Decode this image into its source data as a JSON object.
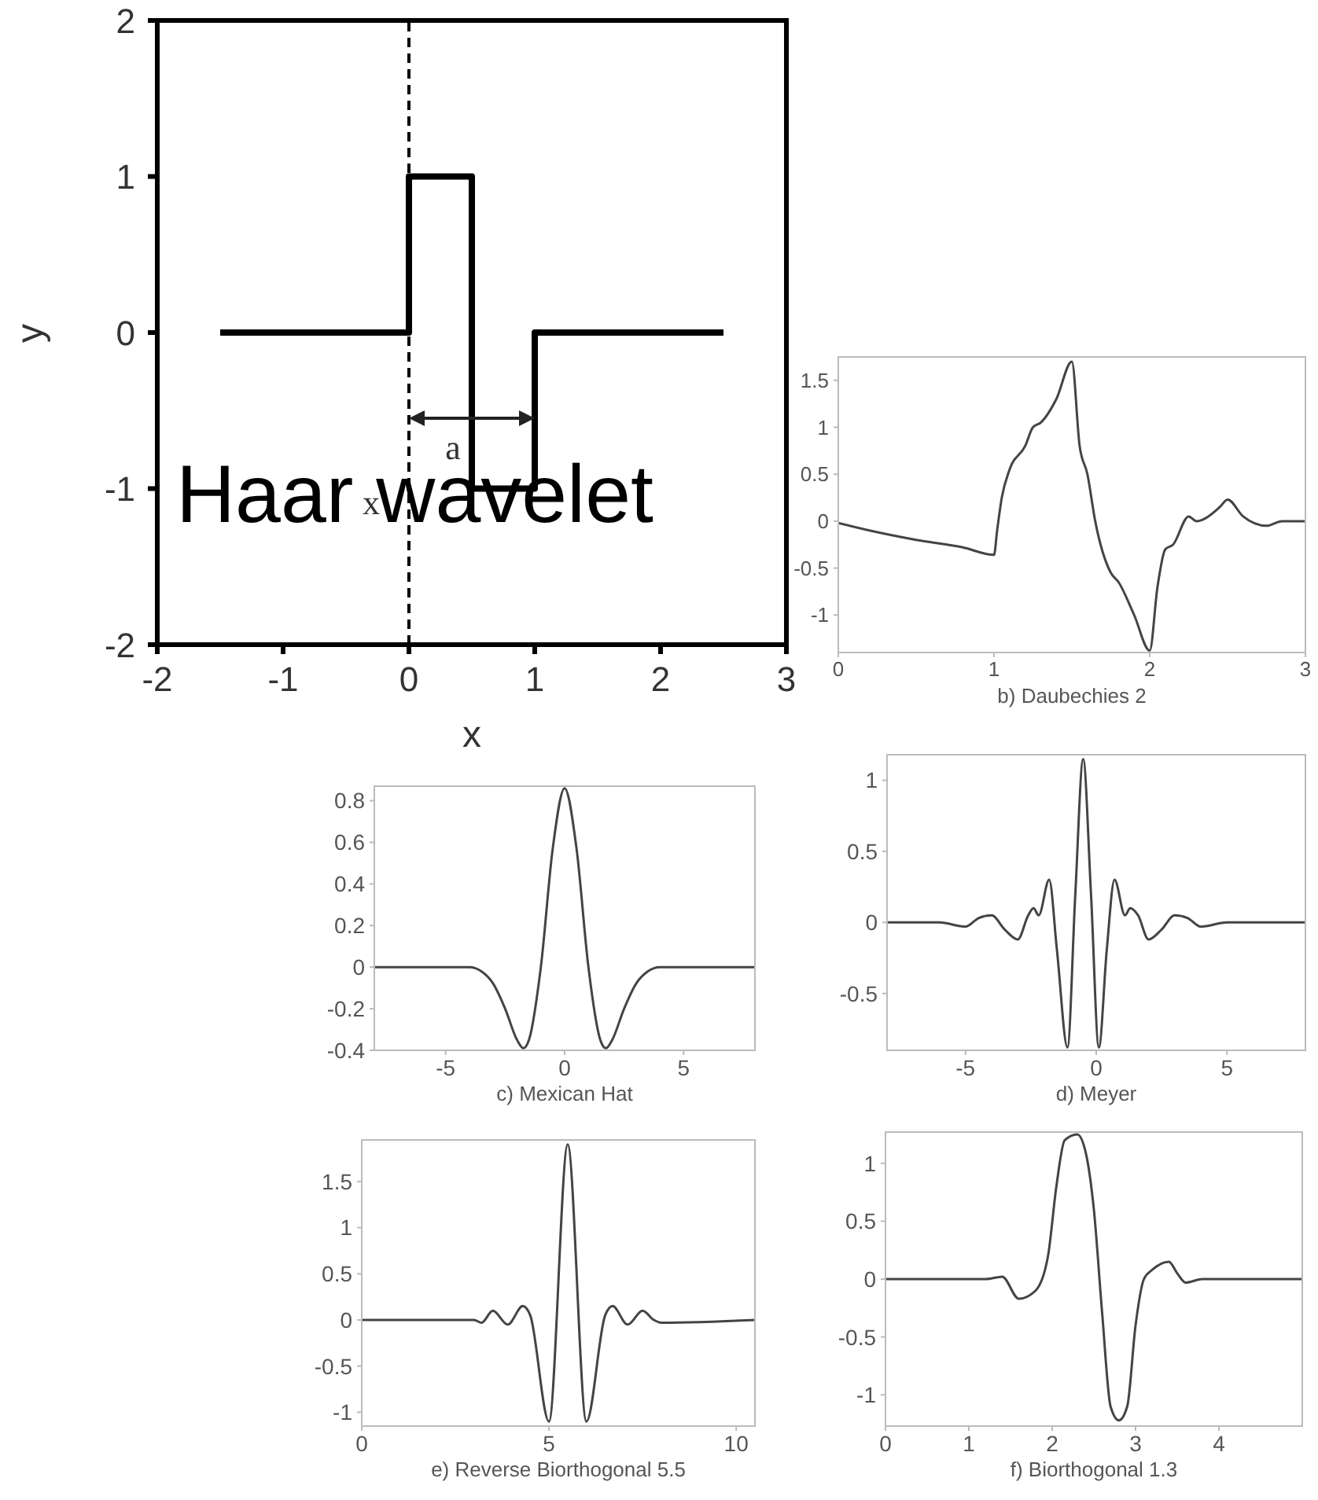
{
  "chart_data": [
    {
      "type": "line",
      "title": "Haar wavelet",
      "xlabel": "x",
      "ylabel": "y",
      "xlim": [
        -2,
        3
      ],
      "xticks": [
        -2,
        -1,
        0,
        1,
        2,
        3
      ],
      "ylim": [
        -2,
        2
      ],
      "yticks": [
        -2,
        -1,
        0,
        1,
        2
      ],
      "grid": false,
      "legend": false,
      "marker": "none",
      "line_style": "solid",
      "series": [
        {
          "color": "#000000",
          "x": [
            -1.5,
            0,
            0,
            0.5,
            0.5,
            1,
            1,
            2.5
          ],
          "values": [
            0,
            0,
            1,
            1,
            -1,
            -1,
            0,
            0
          ]
        }
      ],
      "ref_lines": [
        {
          "axis": "x",
          "value": 0,
          "line_style": "dashed",
          "color": "#000000"
        }
      ],
      "annotations": [
        "a",
        "x"
      ]
    },
    {
      "type": "line",
      "xlabel": "b) Daubechies 2",
      "xlim": [
        0,
        3
      ],
      "xticks": [
        0,
        1,
        2,
        3
      ],
      "ylim": [
        -1.4,
        1.75
      ],
      "yticks": [
        -1,
        -0.5,
        0,
        0.5,
        1,
        1.5
      ],
      "grid": false,
      "legend": false,
      "marker": "none",
      "line_style": "solid",
      "series": [
        {
          "color": "#444444",
          "x": [
            0,
            0.2,
            0.5,
            0.8,
            1,
            1.02,
            1.05,
            1.1,
            1.2,
            1.25,
            1.3,
            1.4,
            1.5,
            1.55,
            1.6,
            1.65,
            1.75,
            1.8,
            1.9,
            2,
            2.05,
            2.1,
            2.15,
            2.25,
            2.3,
            2.45,
            2.5,
            2.6,
            2.75,
            2.85,
            3
          ],
          "values": [
            -0.02,
            -0.1,
            -0.2,
            -0.28,
            -0.36,
            -0.1,
            0.25,
            0.55,
            0.8,
            1.0,
            1.05,
            1.3,
            1.7,
            0.8,
            0.5,
            0,
            -0.55,
            -0.65,
            -1.0,
            -1.38,
            -0.7,
            -0.3,
            -0.25,
            0.05,
            0,
            0.15,
            0.23,
            0.05,
            -0.05,
            0,
            0
          ]
        }
      ]
    },
    {
      "type": "line",
      "xlabel": "c) Mexican Hat",
      "xlim": [
        -8,
        8
      ],
      "xticks": [
        -5,
        0,
        5
      ],
      "ylim": [
        -0.4,
        0.87
      ],
      "yticks": [
        -0.4,
        -0.2,
        0,
        0.2,
        0.4,
        0.6,
        0.8
      ],
      "grid": false,
      "legend": false,
      "marker": "none",
      "line_style": "solid",
      "series": [
        {
          "color": "#444444",
          "x": [
            -8,
            -6,
            -5,
            -4,
            -3.5,
            -3,
            -2.5,
            -2,
            -1.73,
            -1.5,
            -1,
            -0.5,
            0,
            0.5,
            1,
            1.5,
            1.73,
            2,
            2.5,
            3,
            3.5,
            4,
            5,
            6,
            8
          ],
          "values": [
            0,
            0,
            0,
            0,
            -0.02,
            -0.08,
            -0.2,
            -0.35,
            -0.39,
            -0.35,
            0,
            0.57,
            0.86,
            0.57,
            0,
            -0.35,
            -0.39,
            -0.35,
            -0.2,
            -0.08,
            -0.02,
            0,
            0,
            0,
            0
          ]
        }
      ]
    },
    {
      "type": "line",
      "xlabel": "d) Meyer",
      "xlim": [
        -8,
        8
      ],
      "xticks": [
        -5,
        0,
        5
      ],
      "ylim": [
        -0.9,
        1.18
      ],
      "yticks": [
        -0.5,
        0,
        0.5,
        1
      ],
      "grid": false,
      "legend": false,
      "marker": "none",
      "line_style": "solid",
      "series": [
        {
          "color": "#444444",
          "x": [
            -8,
            -6,
            -5,
            -4.5,
            -4,
            -3.5,
            -3,
            -2.6,
            -2.4,
            -2.2,
            -1.8,
            -1.5,
            -1.1,
            -0.8,
            -0.5,
            -0.2,
            0.1,
            0.4,
            0.7,
            1.1,
            1.3,
            1.6,
            2,
            2.5,
            3,
            3.5,
            4,
            5,
            8
          ],
          "values": [
            0,
            0,
            -0.03,
            0.03,
            0.05,
            -0.05,
            -0.12,
            0.05,
            0.1,
            0.05,
            0.3,
            -0.2,
            -0.88,
            0.2,
            1.15,
            0.2,
            -0.88,
            -0.2,
            0.3,
            0.05,
            0.1,
            0.05,
            -0.12,
            -0.05,
            0.05,
            0.03,
            -0.03,
            0,
            0
          ]
        }
      ]
    },
    {
      "type": "line",
      "xlabel": "e) Reverse Biorthogonal 5.5",
      "xlim": [
        0,
        10.5
      ],
      "xticks": [
        0,
        5,
        10
      ],
      "ylim": [
        -1.15,
        1.95
      ],
      "yticks": [
        -1,
        -0.5,
        0,
        0.5,
        1,
        1.5
      ],
      "grid": false,
      "legend": false,
      "marker": "none",
      "line_style": "solid",
      "series": [
        {
          "color": "#444444",
          "x": [
            0,
            3,
            3.2,
            3.5,
            3.9,
            4.3,
            4.5,
            5,
            5.5,
            6,
            6.5,
            6.7,
            7.1,
            7.5,
            7.8,
            8,
            10.5
          ],
          "values": [
            0,
            0,
            -0.03,
            0.1,
            -0.05,
            0.15,
            0.05,
            -1.1,
            1.9,
            -1.1,
            0.05,
            0.15,
            -0.05,
            0.1,
            0,
            -0.03,
            0
          ]
        }
      ]
    },
    {
      "type": "line",
      "xlabel": "f) Biorthogonal 1.3",
      "xlim": [
        0,
        5
      ],
      "xticks": [
        0,
        1,
        2,
        3,
        4
      ],
      "ylim": [
        -1.27,
        1.27
      ],
      "yticks": [
        -1,
        -0.5,
        0,
        0.5,
        1
      ],
      "grid": false,
      "legend": false,
      "marker": "none",
      "line_style": "solid",
      "series": [
        {
          "color": "#444444",
          "x": [
            0,
            1.2,
            1.4,
            1.6,
            1.8,
            1.95,
            2.05,
            2.15,
            2.3,
            2.4,
            2.5,
            2.6,
            2.7,
            2.8,
            2.9,
            3,
            3.1,
            3.2,
            3.4,
            3.5,
            3.6,
            3.8,
            5
          ],
          "values": [
            0,
            0,
            0.02,
            -0.17,
            -0.1,
            0.2,
            0.8,
            1.2,
            1.25,
            1.1,
            0.6,
            -0.3,
            -1.1,
            -1.22,
            -1.1,
            -0.4,
            0,
            0.08,
            0.15,
            0.05,
            -0.03,
            0,
            0
          ]
        }
      ]
    }
  ]
}
